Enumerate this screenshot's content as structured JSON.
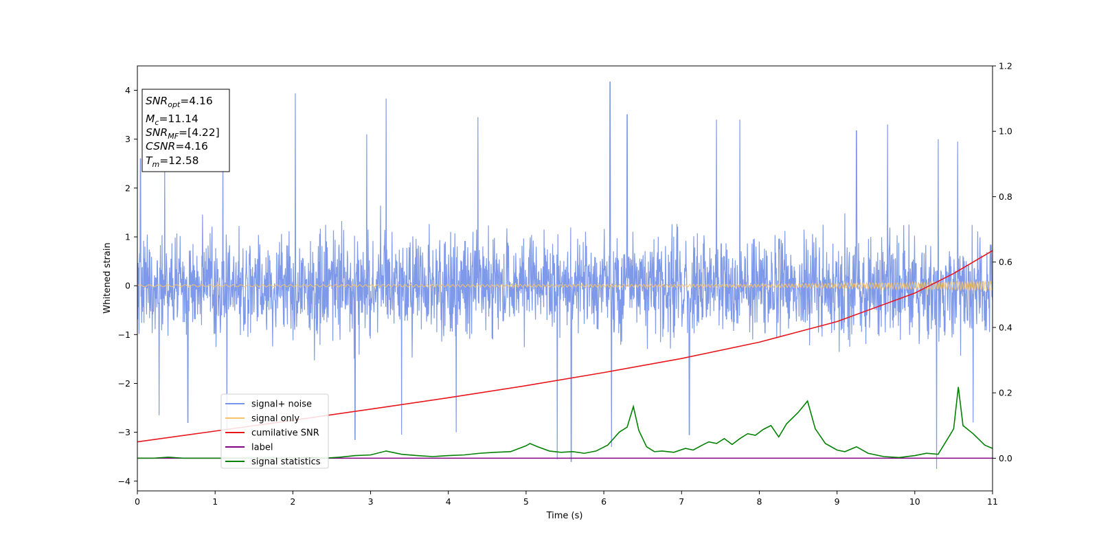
{
  "chart_data": {
    "type": "line",
    "xlabel": "Time (s)",
    "ylabel": "Whitened strain",
    "xlim": [
      0,
      11
    ],
    "ylim": [
      -4.2,
      4.5
    ],
    "y2lim": [
      -0.1,
      1.2
    ],
    "x_ticks": [
      "0",
      "1",
      "2",
      "3",
      "4",
      "5",
      "6",
      "7",
      "8",
      "9",
      "10",
      "11"
    ],
    "y_ticks": [
      "−4",
      "−3",
      "−2",
      "−1",
      "0",
      "1",
      "2",
      "3",
      "4"
    ],
    "y2_ticks": [
      "0.0",
      "0.2",
      "0.4",
      "0.6",
      "0.8",
      "1.0",
      "1.2"
    ],
    "legend_position": "lower-left",
    "info_box": {
      "lines": [
        {
          "sym": "SNR",
          "sub": "opt",
          "val": "=4.16"
        },
        {
          "sym": "M",
          "sub": "c",
          "val": "=11.14"
        },
        {
          "sym": "SNR",
          "sub": "MF",
          "val": "=[4.22]"
        },
        {
          "sym": "CSNR",
          "sub": "",
          "val": "=4.16"
        },
        {
          "sym": "T",
          "sub": "m",
          "val": "=12.58"
        }
      ]
    },
    "series": [
      {
        "name": "signal+ noise",
        "color": "#7794e8",
        "axis": "left",
        "description_kind": "noise",
        "envelope": {
          "typical_max": 1.9,
          "typical_min": -1.9,
          "spikes": [
            [
              0.04,
              2.6
            ],
            [
              0.35,
              2.55
            ],
            [
              1.1,
              2.9
            ],
            [
              2.03,
              3.94
            ],
            [
              2.95,
              3.1
            ],
            [
              3.2,
              3.83
            ],
            [
              4.38,
              3.45
            ],
            [
              6.08,
              4.17
            ],
            [
              6.3,
              3.5
            ],
            [
              7.45,
              3.4
            ],
            [
              7.75,
              3.4
            ],
            [
              9.25,
              3.17
            ],
            [
              9.65,
              3.3
            ],
            [
              10.3,
              3.0
            ],
            [
              10.55,
              2.95
            ],
            [
              1.15,
              -3.1
            ],
            [
              0.65,
              -2.8
            ],
            [
              0.28,
              -2.65
            ],
            [
              2.8,
              -3.15
            ],
            [
              3.4,
              -3.05
            ],
            [
              4.1,
              -3.0
            ],
            [
              5.4,
              -3.55
            ],
            [
              5.58,
              -3.6
            ],
            [
              6.1,
              -3.3
            ],
            [
              7.1,
              -3.05
            ],
            [
              10.28,
              -3.75
            ],
            [
              10.75,
              -2.8
            ]
          ]
        }
      },
      {
        "name": "signal only",
        "color": "#f5c26b",
        "axis": "left",
        "amplitude": [
          [
            0,
            0.02
          ],
          [
            8,
            0.03
          ],
          [
            9,
            0.05
          ],
          [
            10,
            0.07
          ],
          [
            11,
            0.1
          ]
        ]
      },
      {
        "name": "cumilative SNR",
        "color": "#e8141a",
        "axis": "right",
        "x": [
          0,
          1,
          2,
          3,
          4,
          5,
          6,
          7,
          8,
          9,
          10,
          10.5,
          11
        ],
        "y": [
          0.05,
          0.083,
          0.116,
          0.15,
          0.185,
          0.222,
          0.262,
          0.305,
          0.355,
          0.418,
          0.505,
          0.565,
          0.635
        ]
      },
      {
        "name": "label",
        "color": "#800080",
        "axis": "right",
        "x": [
          0,
          11
        ],
        "y": [
          0.0,
          0.0
        ]
      },
      {
        "name": "signal statistics",
        "color": "#008000",
        "axis": "right",
        "x": [
          0,
          0.2,
          0.4,
          0.6,
          0.8,
          1.0,
          1.2,
          1.4,
          1.6,
          1.8,
          2.0,
          2.2,
          2.4,
          2.6,
          2.8,
          3.0,
          3.2,
          3.4,
          3.6,
          3.8,
          4.0,
          4.2,
          4.4,
          4.6,
          4.8,
          5.0,
          5.05,
          5.15,
          5.3,
          5.45,
          5.6,
          5.75,
          5.9,
          6.05,
          6.2,
          6.3,
          6.38,
          6.45,
          6.55,
          6.65,
          6.75,
          6.9,
          7.05,
          7.15,
          7.25,
          7.35,
          7.45,
          7.55,
          7.65,
          7.75,
          7.85,
          7.95,
          8.05,
          8.15,
          8.25,
          8.35,
          8.5,
          8.62,
          8.72,
          8.85,
          9.0,
          9.1,
          9.25,
          9.4,
          9.6,
          9.8,
          10.0,
          10.15,
          10.3,
          10.45,
          10.5,
          10.56,
          10.62,
          10.75,
          10.9,
          11.0
        ],
        "y": [
          0.0,
          0.0,
          0.003,
          0.0,
          0.0,
          0.0,
          0.0,
          0.0,
          0.0,
          0.0,
          0.0,
          0.002,
          0.0,
          0.003,
          0.008,
          0.01,
          0.022,
          0.012,
          0.008,
          0.005,
          0.008,
          0.01,
          0.015,
          0.018,
          0.02,
          0.038,
          0.045,
          0.035,
          0.022,
          0.018,
          0.02,
          0.015,
          0.022,
          0.04,
          0.08,
          0.095,
          0.158,
          0.085,
          0.035,
          0.02,
          0.022,
          0.018,
          0.03,
          0.025,
          0.038,
          0.05,
          0.045,
          0.06,
          0.042,
          0.06,
          0.075,
          0.07,
          0.088,
          0.1,
          0.065,
          0.105,
          0.14,
          0.175,
          0.09,
          0.045,
          0.025,
          0.02,
          0.035,
          0.015,
          0.005,
          0.002,
          0.008,
          0.015,
          0.012,
          0.07,
          0.09,
          0.218,
          0.1,
          0.075,
          0.04,
          0.03
        ]
      }
    ]
  }
}
